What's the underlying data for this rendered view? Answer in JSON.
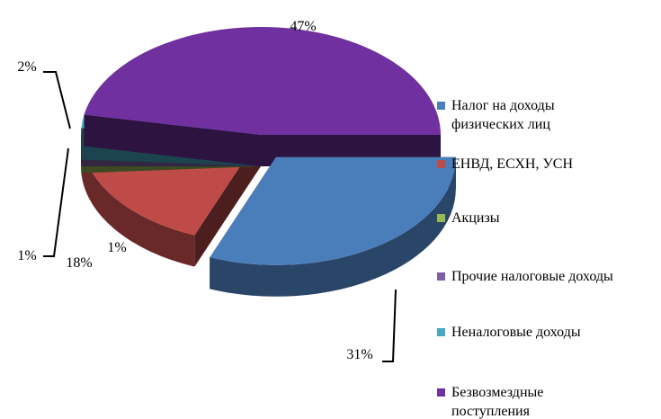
{
  "chart_data": {
    "type": "pie3d",
    "categories": [
      "Налог на доходы физических лиц",
      "ЕНВД, ЕСХН, УСН",
      "Акцизы",
      "Прочие налоговые доходы",
      "Неналоговые доходы",
      "Безвозмездные поступления"
    ],
    "values": [
      31,
      18,
      1,
      1,
      2,
      47
    ],
    "value_labels": [
      "31%",
      "18%",
      "1%",
      "1%",
      "2%",
      "47%"
    ],
    "colors": [
      "#4a7ebb",
      "#be4b48",
      "#98b954",
      "#7d60a0",
      "#46aac5",
      "#7030a0"
    ],
    "legend": "right"
  }
}
